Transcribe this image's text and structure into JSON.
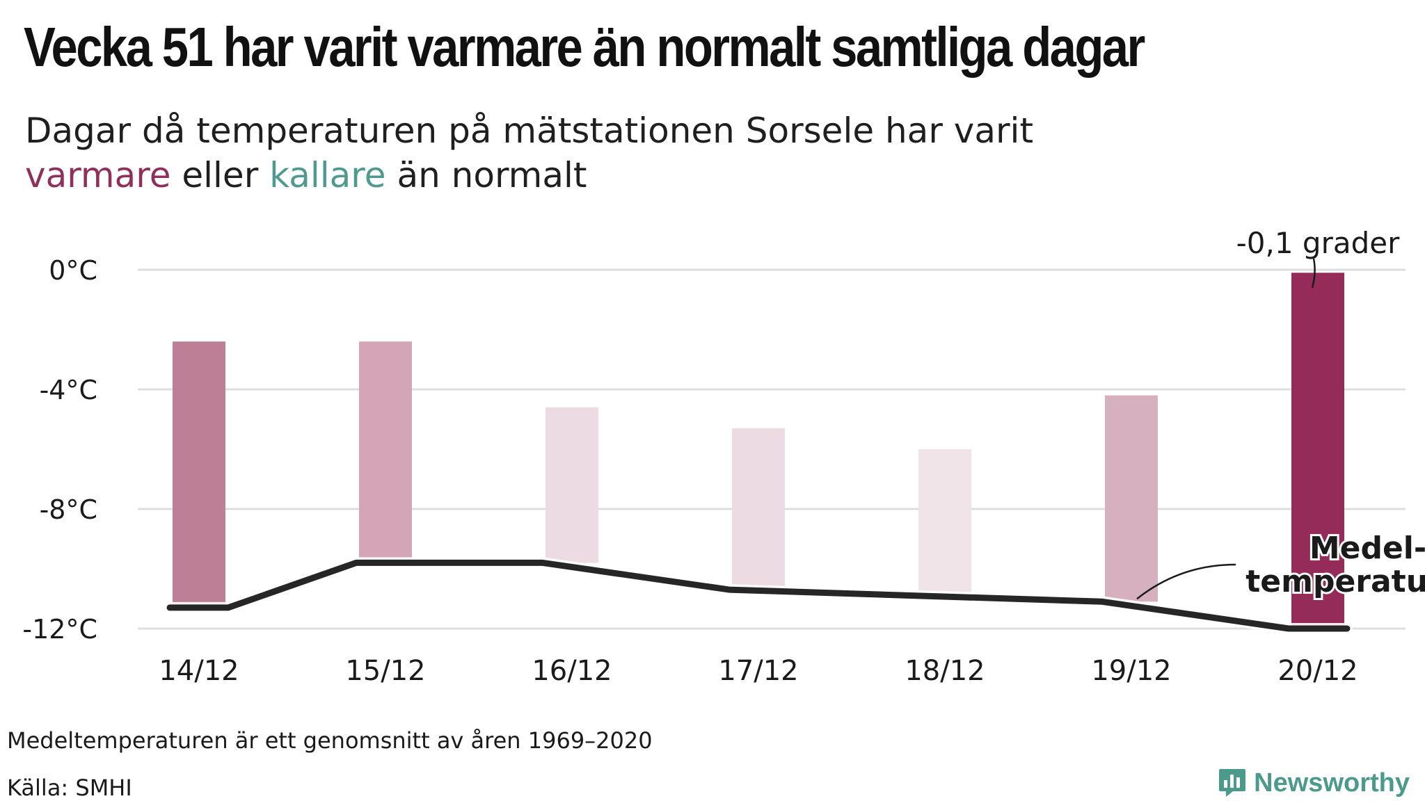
{
  "header": {
    "title": "Vecka 51 har varit varmare än normalt samtliga dagar",
    "subtitle_line1": "Dagar då temperaturen på mätstationen Sorsele har varit",
    "subtitle_warm": "varmare",
    "subtitle_mid": "eller",
    "subtitle_cold": "kallare",
    "subtitle_end": "än normalt"
  },
  "chart_data": {
    "type": "bar",
    "categories": [
      "14/12",
      "15/12",
      "16/12",
      "17/12",
      "18/12",
      "19/12",
      "20/12"
    ],
    "series": [
      {
        "values": [
          -2.4,
          -2.4,
          -4.6,
          -5.3,
          -6.0,
          -4.2,
          -0.1
        ]
      },
      {
        "name": "Medeltemperatur",
        "values": [
          -11.3,
          -9.8,
          -9.8,
          -10.7,
          -10.9,
          -11.1,
          -12.0
        ]
      }
    ],
    "y_ticks": [
      0,
      -4,
      -8,
      -12
    ],
    "y_tick_labels": [
      "0°C",
      "-4°C",
      "-8°C",
      "-12°C"
    ],
    "ylim": [
      -12.5,
      1.5
    ],
    "grid": true,
    "annotations": {
      "last_bar_label": "-0,1 grader",
      "line_label_1": "Medel-",
      "line_label_2": "temperatur"
    },
    "colors": {
      "bar_shades": [
        "#bc7f96",
        "#d3a5b7",
        "#ecdbe2",
        "#ecdbe2",
        "#f0e3e8",
        "#d7b0bf",
        "#952b58"
      ],
      "line": "#262626",
      "grid": "#dddddd"
    }
  },
  "footer": {
    "note": "Medeltemperaturen är ett genomsnitt av åren 1969–2020",
    "source": "Källa: SMHI",
    "brand": "Newsworthy",
    "brand_icon": "newsworthy-logo-icon",
    "brand_color": "#4c9a8c"
  }
}
